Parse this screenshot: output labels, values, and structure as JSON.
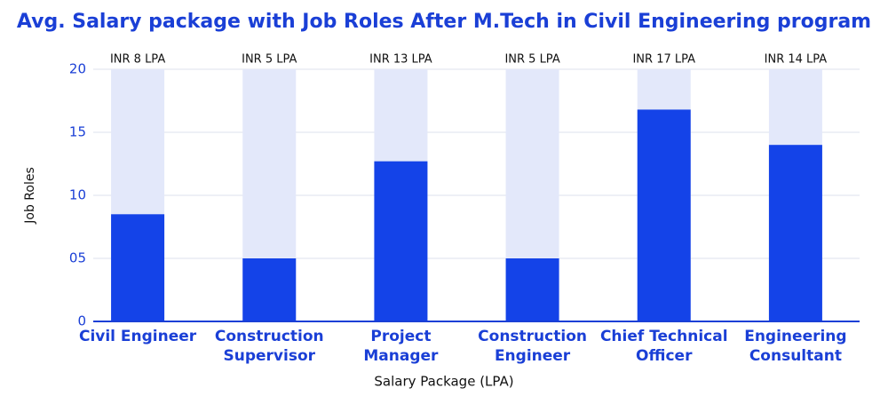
{
  "chart_data": {
    "type": "bar",
    "title": "Avg. Salary package with Job Roles After M.Tech in Civil Engineering program",
    "x_label": "Salary Package (LPA)",
    "y_label": "Job Roles",
    "categories": [
      "Civil Engineer",
      "Construction Supervisor",
      "Project Manager",
      "Construction Engineer",
      "Chief Technical Officer",
      "Engineering Consultant"
    ],
    "values": [
      8.5,
      5,
      12.7,
      5,
      16.8,
      14
    ],
    "annotations": [
      "INR 8 LPA",
      "INR 5 LPA",
      "INR 13 LPA",
      "INR 5 LPA",
      "INR 17 LPA",
      "INR 14 LPA"
    ],
    "color": "#1443e8",
    "background_color": "#e3e8fa",
    "ylim": [
      0,
      20
    ],
    "yticks": [
      0,
      {
        "value": 5,
        "label": "05"
      },
      10,
      15,
      20
    ],
    "grid": true
  }
}
